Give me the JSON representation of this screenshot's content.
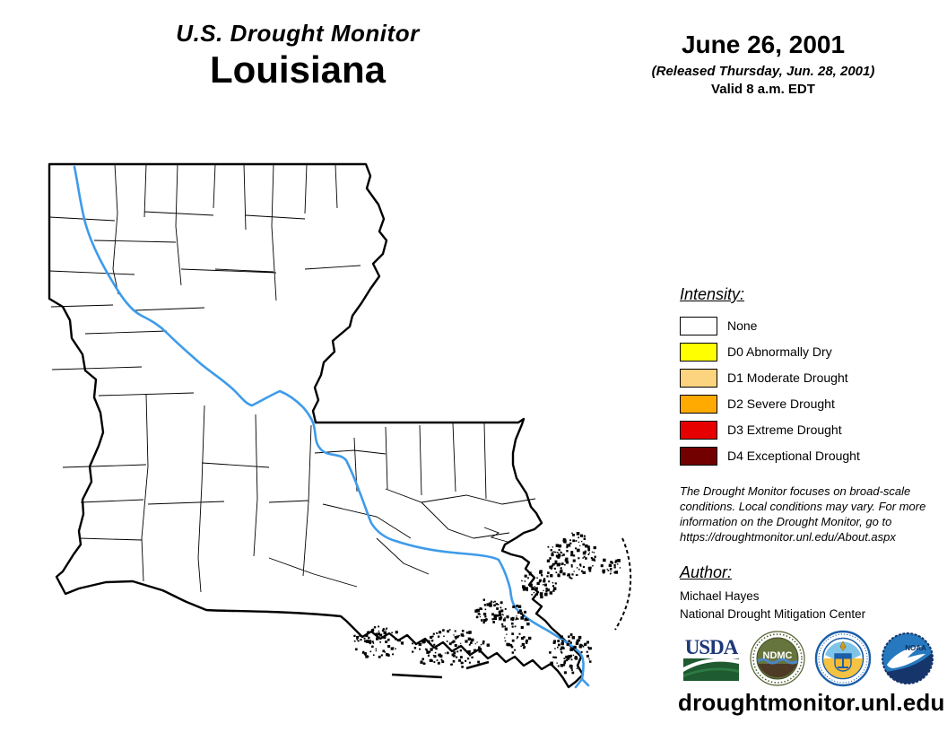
{
  "header": {
    "title": "U.S. Drought Monitor",
    "region": "Louisiana",
    "date": "June 26, 2001",
    "released": "(Released Thursday, Jun. 28, 2001)",
    "valid": "Valid 8 a.m. EDT"
  },
  "legend": {
    "heading": "Intensity:",
    "items": [
      {
        "label": "None",
        "color": "#FFFFFF"
      },
      {
        "label": "D0 Abnormally Dry",
        "color": "#FFFF00"
      },
      {
        "label": "D1 Moderate Drought",
        "color": "#FCD37F"
      },
      {
        "label": "D2 Severe Drought",
        "color": "#FFAA00"
      },
      {
        "label": "D3 Extreme Drought",
        "color": "#E60000"
      },
      {
        "label": "D4 Exceptional Drought",
        "color": "#730000"
      }
    ]
  },
  "disclaimer": {
    "lines": [
      "The Drought Monitor focuses on broad-scale",
      "conditions. Local conditions may vary. For more",
      "information on the Drought Monitor, go to",
      "https://droughtmonitor.unl.edu/About.aspx"
    ]
  },
  "author": {
    "heading": "Author:",
    "name": "Michael Hayes",
    "organization": "National Drought Mitigation Center"
  },
  "logos": {
    "usda": {
      "label": "USDA"
    },
    "ndmc": {
      "label": "NDMC"
    },
    "noaa": {
      "label": "NOAA"
    }
  },
  "footer": {
    "url": "droughtmonitor.unl.edu"
  },
  "map": {
    "region": "Louisiana",
    "drought_intensity_shown": "None",
    "river_color": "#3E9BEA",
    "boundary_color": "#000000"
  }
}
